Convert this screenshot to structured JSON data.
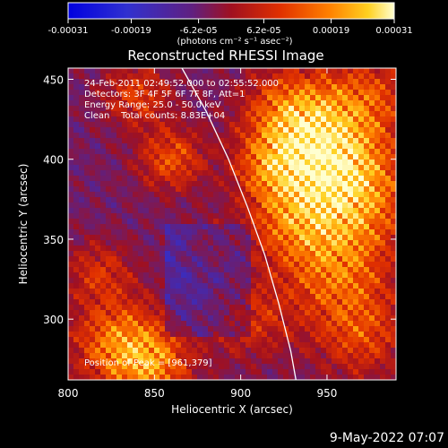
{
  "chart_data": {
    "type": "heatmap",
    "title": "Reconstructed RHESSI Image",
    "xlabel": "Heliocentric X (arcsec)",
    "ylabel": "Heliocentric Y (arcsec)",
    "xlim": [
      800,
      990
    ],
    "ylim": [
      262,
      457
    ],
    "x_ticks": [
      800,
      850,
      900,
      950
    ],
    "y_ticks": [
      300,
      350,
      400,
      450
    ],
    "colorbar": {
      "unit_label": "(photons cm⁻² s⁻¹ asec⁻²)",
      "tick_labels": [
        "-0.00031",
        "-0.00019",
        "-6.2e-05",
        "6.2e-05",
        "0.00019",
        "0.00031"
      ],
      "tick_values": [
        -0.00031,
        -0.00019,
        -6.2e-05,
        6.2e-05,
        0.00019,
        0.00031
      ],
      "range": [
        -0.00031,
        0.00031
      ],
      "colors": [
        "#0000e0",
        "#3030d0",
        "#602080",
        "#a01020",
        "#e03000",
        "#ff8000",
        "#ffd020",
        "#ffffd0"
      ]
    },
    "annotations": [
      "24-Feb-2011 02:49:52.000 to 02:55:52.000",
      "Detectors: 3F 4F 5F 6F 7F 8F, Att=1",
      "Energy Range: 25.0 - 50.0 keV",
      "Clean    Total counts: 8.83E+04"
    ],
    "peak_label": "Position of Peak = [961,379]",
    "limb_curve": [
      [
        866,
        457
      ],
      [
        880,
        430
      ],
      [
        893,
        400
      ],
      [
        904,
        370
      ],
      [
        914,
        340
      ],
      [
        922,
        310
      ],
      [
        929,
        280
      ],
      [
        932,
        262
      ]
    ],
    "grid": false,
    "legend": "none"
  },
  "footer": {
    "date": "9-May-2022 07:07"
  }
}
